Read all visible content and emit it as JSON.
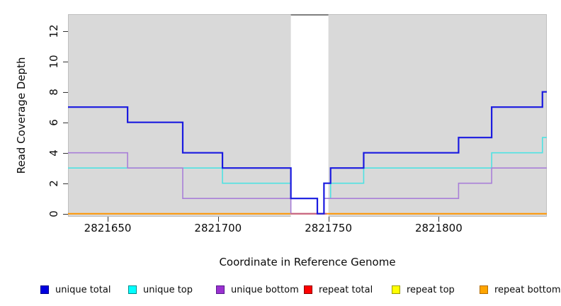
{
  "chart_data": {
    "type": "line",
    "subtype": "step-coverage",
    "title": "",
    "xlabel": "Coordinate in Reference Genome",
    "ylabel": "Read Coverage Depth",
    "x_range": [
      2821632,
      2821849
    ],
    "y_range": [
      0,
      13.2
    ],
    "x_ticks": [
      2821650,
      2821700,
      2821750,
      2821800
    ],
    "y_ticks": [
      0,
      2,
      4,
      6,
      8,
      10,
      12
    ],
    "grid": "off",
    "plot_background": "#d9d9d9",
    "plot_border_color": "#bfbfbf",
    "highlight_band": {
      "name": "repeat-region",
      "start": 2821733,
      "end": 2821750,
      "fill": "#ffffff",
      "top_border_color": "#7f7f7f",
      "zero_line_color": "#c45f85"
    },
    "series": [
      {
        "name": "repeat total",
        "color": "#dd0000",
        "width": 1.4,
        "steps": [
          [
            2821632,
            0
          ],
          [
            2821849,
            0
          ]
        ]
      },
      {
        "name": "repeat top",
        "color": "#ffff00",
        "width": 1.4,
        "steps": [
          [
            2821632,
            0
          ],
          [
            2821849,
            0
          ]
        ]
      },
      {
        "name": "repeat bottom",
        "color": "#ff9500",
        "width": 2,
        "steps": [
          [
            2821632,
            0
          ],
          [
            2821849,
            0
          ]
        ]
      },
      {
        "name": "unique top",
        "color": "#4fe2e2",
        "width": 1.6,
        "steps": [
          [
            2821632,
            3
          ],
          [
            2821702,
            2
          ],
          [
            2821733,
            1
          ],
          [
            2821745,
            0
          ],
          [
            2821748,
            1
          ],
          [
            2821751,
            2
          ],
          [
            2821766,
            3
          ],
          [
            2821824,
            4
          ],
          [
            2821847,
            5
          ],
          [
            2821849,
            5
          ]
        ]
      },
      {
        "name": "unique bottom",
        "color": "#a97fd8",
        "width": 1.6,
        "steps": [
          [
            2821632,
            4
          ],
          [
            2821659,
            3
          ],
          [
            2821684,
            1
          ],
          [
            2821733,
            0
          ],
          [
            2821748,
            1
          ],
          [
            2821809,
            2
          ],
          [
            2821824,
            3
          ],
          [
            2821849,
            3
          ]
        ]
      },
      {
        "name": "unique total",
        "color": "#1a1ae0",
        "width": 2.2,
        "steps": [
          [
            2821632,
            7
          ],
          [
            2821659,
            6
          ],
          [
            2821684,
            4
          ],
          [
            2821702,
            3
          ],
          [
            2821733,
            1
          ],
          [
            2821745,
            0
          ],
          [
            2821748,
            2
          ],
          [
            2821751,
            3
          ],
          [
            2821766,
            4
          ],
          [
            2821809,
            5
          ],
          [
            2821824,
            7
          ],
          [
            2821847,
            8
          ],
          [
            2821849,
            8
          ]
        ]
      }
    ],
    "legend_position": "bottom"
  },
  "legend": {
    "items": [
      {
        "label": "unique total",
        "fill": "#0000e0",
        "border": "#00008b"
      },
      {
        "label": "unique top",
        "fill": "#00ffff",
        "border": "#008b8b"
      },
      {
        "label": "unique bottom",
        "fill": "#9b30d0",
        "border": "#551a8b"
      },
      {
        "label": "repeat total",
        "fill": "#ff0000",
        "border": "#8b0000"
      },
      {
        "label": "repeat top",
        "fill": "#ffff00",
        "border": "#9a9a00"
      },
      {
        "label": "repeat bottom",
        "fill": "#ffa500",
        "border": "#b36b00"
      }
    ]
  },
  "axes": {
    "x_title": "Coordinate in Reference Genome",
    "y_title": "Read Coverage Depth"
  }
}
